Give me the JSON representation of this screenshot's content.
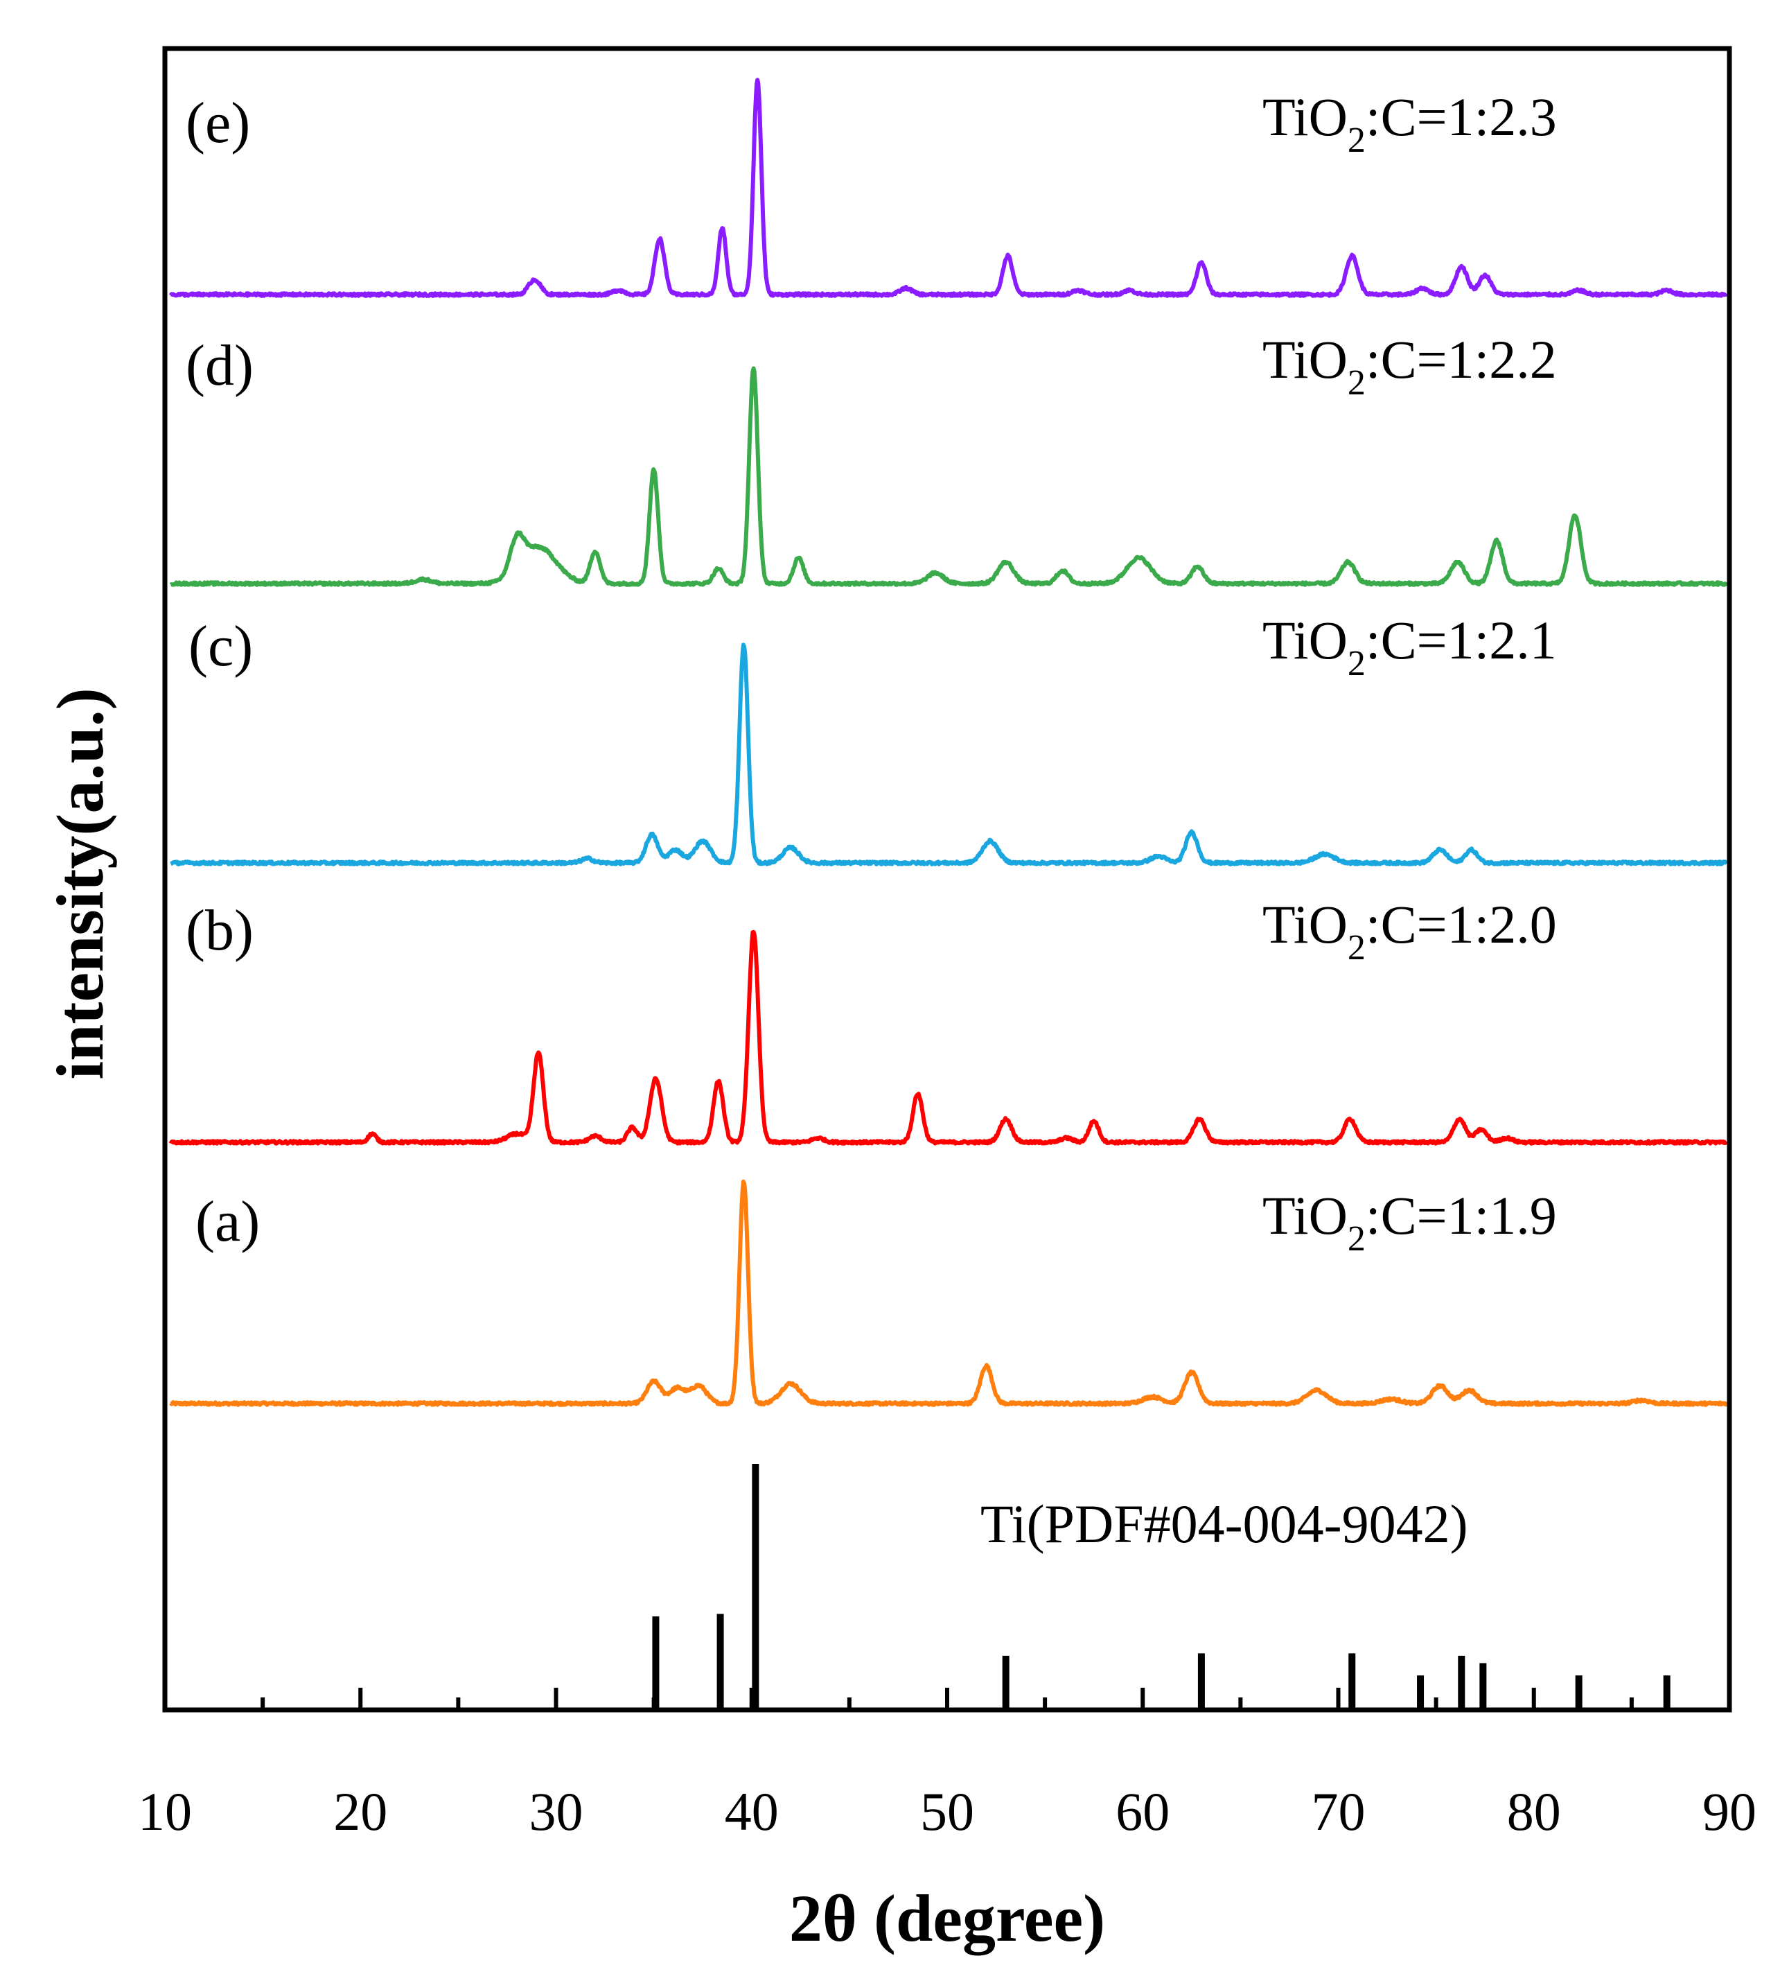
{
  "chart_data": {
    "type": "line",
    "title": "",
    "xlabel": "2θ (degree)",
    "ylabel": "intensity(a.u.)",
    "xlim": [
      10,
      90
    ],
    "xticks": [
      10,
      20,
      30,
      40,
      50,
      60,
      70,
      80,
      90
    ],
    "yticks": [],
    "grid": false,
    "reference": {
      "name": "Ti(PDF#04-004-9042)",
      "type": "stick",
      "peaks": [
        {
          "x": 35.1,
          "y": 0.38
        },
        {
          "x": 38.4,
          "y": 0.39
        },
        {
          "x": 40.2,
          "y": 1.0
        },
        {
          "x": 53.0,
          "y": 0.22
        },
        {
          "x": 63.0,
          "y": 0.23
        },
        {
          "x": 70.7,
          "y": 0.23
        },
        {
          "x": 74.2,
          "y": 0.14
        },
        {
          "x": 76.3,
          "y": 0.22
        },
        {
          "x": 77.4,
          "y": 0.19
        },
        {
          "x": 82.3,
          "y": 0.14
        },
        {
          "x": 86.8,
          "y": 0.14
        }
      ]
    },
    "series": [
      {
        "id": "a",
        "panel_label": "(a)",
        "name_main": "TiO",
        "name_sub": "2",
        "name_rest": ":C=1:1.9",
        "color": "#ff7f0e",
        "offset": 0,
        "peaks": [
          [
            35.0,
            0.1,
            0.35
          ],
          [
            36.2,
            0.07,
            0.4
          ],
          [
            37.3,
            0.08,
            0.4
          ],
          [
            39.6,
            1.0,
            0.22
          ],
          [
            42.0,
            0.09,
            0.5
          ],
          [
            52.0,
            0.17,
            0.3
          ],
          [
            60.5,
            0.03,
            0.5
          ],
          [
            62.5,
            0.14,
            0.35
          ],
          [
            68.9,
            0.06,
            0.5
          ],
          [
            72.7,
            0.02,
            0.5
          ],
          [
            75.2,
            0.08,
            0.4
          ],
          [
            76.7,
            0.06,
            0.4
          ],
          [
            85.5,
            0.015,
            0.4
          ]
        ]
      },
      {
        "id": "b",
        "panel_label": "(b)",
        "name_main": "TiO",
        "name_sub": "2",
        "name_rest": ":C=1:2.0",
        "color": "#ff0000",
        "offset": 1,
        "peaks": [
          [
            20.6,
            0.04,
            0.2
          ],
          [
            28.0,
            0.04,
            0.5
          ],
          [
            29.1,
            0.42,
            0.25
          ],
          [
            32.0,
            0.03,
            0.3
          ],
          [
            33.9,
            0.07,
            0.25
          ],
          [
            35.1,
            0.3,
            0.3
          ],
          [
            38.3,
            0.29,
            0.25
          ],
          [
            40.1,
            1.0,
            0.25
          ],
          [
            43.4,
            0.02,
            0.3
          ],
          [
            48.5,
            0.23,
            0.25
          ],
          [
            53.0,
            0.11,
            0.3
          ],
          [
            56.1,
            0.02,
            0.3
          ],
          [
            57.5,
            0.1,
            0.25
          ],
          [
            62.9,
            0.11,
            0.3
          ],
          [
            70.6,
            0.11,
            0.3
          ],
          [
            76.2,
            0.11,
            0.3
          ],
          [
            77.3,
            0.06,
            0.3
          ],
          [
            78.6,
            0.02,
            0.3
          ]
        ]
      },
      {
        "id": "c",
        "panel_label": "(c)",
        "name_main": "TiO",
        "name_sub": "2",
        "name_rest": ":C=1:2.1",
        "color": "#1aa7e0",
        "offset": 2,
        "peaks": [
          [
            31.6,
            0.02,
            0.3
          ],
          [
            34.9,
            0.13,
            0.3
          ],
          [
            36.1,
            0.06,
            0.35
          ],
          [
            37.5,
            0.1,
            0.4
          ],
          [
            39.6,
            1.0,
            0.22
          ],
          [
            42.0,
            0.07,
            0.4
          ],
          [
            52.2,
            0.1,
            0.4
          ],
          [
            60.8,
            0.03,
            0.4
          ],
          [
            62.5,
            0.14,
            0.3
          ],
          [
            69.3,
            0.04,
            0.5
          ],
          [
            75.2,
            0.06,
            0.35
          ],
          [
            76.8,
            0.06,
            0.3
          ]
        ]
      },
      {
        "id": "d",
        "panel_label": "(d)",
        "name_main": "TiO",
        "name_sub": "2",
        "name_rest": ":C=1:2.2",
        "color": "#3aaa4a",
        "offset": 3,
        "peaks": [
          [
            23.2,
            0.02,
            0.4
          ],
          [
            28.0,
            0.15,
            0.35
          ],
          [
            29.1,
            0.17,
            0.9
          ],
          [
            32.0,
            0.15,
            0.25
          ],
          [
            35.0,
            0.53,
            0.22
          ],
          [
            38.3,
            0.07,
            0.25
          ],
          [
            40.1,
            1.0,
            0.22
          ],
          [
            42.4,
            0.12,
            0.25
          ],
          [
            49.4,
            0.05,
            0.4
          ],
          [
            53.0,
            0.1,
            0.4
          ],
          [
            55.9,
            0.06,
            0.3
          ],
          [
            59.8,
            0.12,
            0.6
          ],
          [
            62.8,
            0.08,
            0.3
          ],
          [
            70.5,
            0.1,
            0.35
          ],
          [
            76.1,
            0.1,
            0.35
          ],
          [
            78.1,
            0.2,
            0.3
          ],
          [
            82.1,
            0.32,
            0.3
          ]
        ]
      },
      {
        "id": "e",
        "panel_label": "(e)",
        "name_main": "TiO",
        "name_sub": "2",
        "name_rest": ":C=1:2.3",
        "color": "#8b1cff",
        "offset": 4,
        "peaks": [
          [
            28.9,
            0.07,
            0.3
          ],
          [
            33.2,
            0.02,
            0.3
          ],
          [
            35.3,
            0.26,
            0.25
          ],
          [
            38.5,
            0.31,
            0.2
          ],
          [
            40.3,
            1.0,
            0.2
          ],
          [
            47.9,
            0.03,
            0.3
          ],
          [
            53.1,
            0.18,
            0.25
          ],
          [
            56.7,
            0.02,
            0.3
          ],
          [
            59.3,
            0.02,
            0.3
          ],
          [
            63.0,
            0.15,
            0.25
          ],
          [
            70.7,
            0.18,
            0.3
          ],
          [
            74.3,
            0.03,
            0.3
          ],
          [
            76.3,
            0.13,
            0.3
          ],
          [
            77.5,
            0.09,
            0.3
          ],
          [
            82.3,
            0.02,
            0.3
          ],
          [
            86.8,
            0.02,
            0.3
          ]
        ]
      }
    ]
  }
}
